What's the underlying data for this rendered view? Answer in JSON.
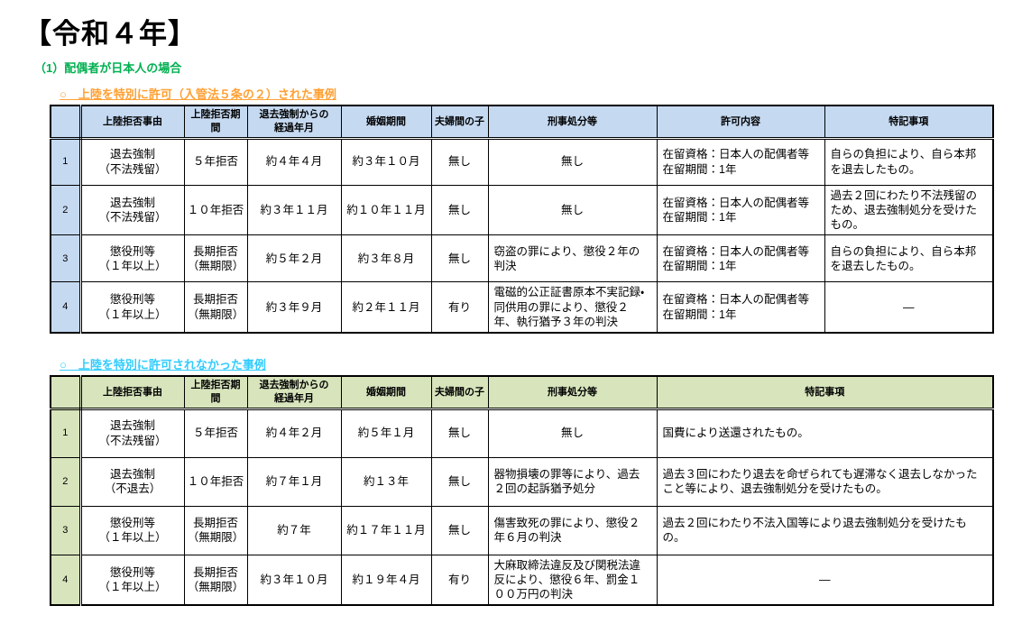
{
  "page": {
    "title": "【令和４年】",
    "subtitle": "（1）配偶者が日本人の場合"
  },
  "colors": {
    "green": "#00B050",
    "orange": "#FFA033",
    "cyan": "#33CCFF",
    "t1head": "#C5D9F1",
    "t2head": "#D7E4BC"
  },
  "table1": {
    "section_label": "○　上陸を特別に許可（入管法５条の２）された事例",
    "headers": [
      "上陸拒否事由",
      "上陸拒否期間",
      "退去強制からの\n経過年月",
      "婚姻期間",
      "夫婦間の子",
      "刑事処分等",
      "許可内容",
      "特記事項"
    ],
    "rows": [
      [
        "1",
        "退去強制\n（不法残留）",
        "５年拒否",
        "約４年４月",
        "約３年１０月",
        "無し",
        "無し",
        "在留資格：日本人の配偶者等\n在留期間：1年",
        "自らの負担により、自ら本邦を退去したもの。"
      ],
      [
        "2",
        "退去強制\n（不法残留）",
        "１０年拒否",
        "約３年１１月",
        "約１０年１１月",
        "無し",
        "無し",
        "在留資格：日本人の配偶者等\n在留期間：1年",
        "過去２回にわたり不法残留のため、退去強制処分を受けたもの。"
      ],
      [
        "3",
        "懲役刑等\n（１年以上）",
        "長期拒否\n（無期限）",
        "約５年２月",
        "約３年８月",
        "無し",
        "窃盗の罪により、懲役２年の判決",
        "在留資格：日本人の配偶者等\n在留期間：1年",
        "自らの負担により、自ら本邦を退去したもの。"
      ],
      [
        "4",
        "懲役刑等\n（１年以上）",
        "長期拒否\n（無期限）",
        "約３年９月",
        "約２年１１月",
        "有り",
        "電磁的公正証書原本不実記録・同供用の罪により、懲役２年、執行猶予３年の判決",
        "在留資格：日本人の配偶者等\n在留期間：1年",
        "―"
      ]
    ]
  },
  "table2": {
    "section_label": "○　上陸を特別に許可されなかった事例",
    "headers": [
      "上陸拒否事由",
      "上陸拒否期間",
      "退去強制からの\n経過年月",
      "婚姻期間",
      "夫婦間の子",
      "刑事処分等",
      "特記事項"
    ],
    "rows": [
      [
        "1",
        "退去強制\n（不法残留）",
        "５年拒否",
        "約４年２月",
        "約５年１月",
        "無し",
        "無し",
        "国費により送還されたもの。"
      ],
      [
        "2",
        "退去強制\n（不退去）",
        "１０年拒否",
        "約７年１月",
        "約１３年",
        "無し",
        "器物損壊の罪等により、過去２回の起訴猶予処分",
        "過去３回にわたり退去を命ぜられても遅滞なく退去しなかったこと等により、退去強制処分を受けたもの。"
      ],
      [
        "3",
        "懲役刑等\n（１年以上）",
        "長期拒否\n（無期限）",
        "約７年",
        "約１７年１１月",
        "無し",
        "傷害致死の罪により、懲役２年６月の判決",
        "過去２回にわたり不法入国等により退去強制処分を受けたもの。"
      ],
      [
        "4",
        "懲役刑等\n（１年以上）",
        "長期拒否\n（無期限）",
        "約３年１０月",
        "約１９年４月",
        "有り",
        "大麻取締法違反及び関税法違反により、懲役６年、罰金１００万円の判決",
        "―"
      ]
    ]
  }
}
